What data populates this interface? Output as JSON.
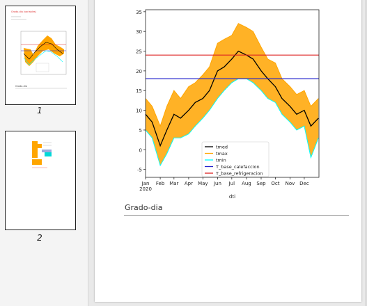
{
  "sidebar": {
    "pages": [
      {
        "number": "1",
        "title_text": "Grado-dia (variables)",
        "footer_text": "Grado-dia"
      },
      {
        "number": "2"
      }
    ]
  },
  "document": {
    "section_heading": "Grado-dia"
  },
  "colors": {
    "tmed": "#000000",
    "tmax": "#ffa500",
    "tmin": "#00ffff",
    "t_base_calefaccion": "#2222cc",
    "t_base_refrigeracion": "#dd2222",
    "fill_between": "#ffa500"
  },
  "chart_data": {
    "type": "line",
    "xlabel": "dti",
    "ylabel": "",
    "ylim": [
      -7,
      35.5
    ],
    "yticks": [
      -5,
      0,
      5,
      10,
      15,
      20,
      25,
      30,
      35
    ],
    "xticks": [
      {
        "label": "Jan",
        "sub": "2020",
        "day": 0
      },
      {
        "label": "Feb",
        "sub": "",
        "day": 31
      },
      {
        "label": "Mar",
        "sub": "",
        "day": 60
      },
      {
        "label": "Apr",
        "sub": "",
        "day": 91
      },
      {
        "label": "May",
        "sub": "",
        "day": 121
      },
      {
        "label": "Jun",
        "sub": "",
        "day": 152
      },
      {
        "label": "Jul",
        "sub": "",
        "day": 182
      },
      {
        "label": "Aug",
        "sub": "",
        "day": 213
      },
      {
        "label": "Sep",
        "sub": "",
        "day": 244
      },
      {
        "label": "Oct",
        "sub": "",
        "day": 274
      },
      {
        "label": "Nov",
        "sub": "",
        "day": 305
      },
      {
        "label": "Dec",
        "sub": "",
        "day": 335
      }
    ],
    "xlim_days": [
      0,
      366
    ],
    "hlines": [
      {
        "name": "T_base_calefaccion",
        "y": 18,
        "color": "#2222cc"
      },
      {
        "name": "T_base_refrigeracion",
        "y": 24,
        "color": "#dd2222"
      }
    ],
    "series": [
      {
        "name": "tmed",
        "color": "#000000",
        "x": [
          "2020-01-01",
          "2020-01-15",
          "2020-02-01",
          "2020-02-15",
          "2020-03-01",
          "2020-03-15",
          "2020-04-01",
          "2020-04-15",
          "2020-05-01",
          "2020-05-15",
          "2020-06-01",
          "2020-06-15",
          "2020-07-01",
          "2020-07-15",
          "2020-08-01",
          "2020-08-15",
          "2020-09-01",
          "2020-09-15",
          "2020-10-01",
          "2020-10-15",
          "2020-11-01",
          "2020-11-15",
          "2020-12-01",
          "2020-12-15",
          "2020-12-31"
        ],
        "values": [
          9,
          7,
          1,
          5,
          9,
          8,
          10,
          12,
          13,
          15,
          20,
          21,
          23,
          25,
          24,
          23,
          20,
          18,
          16,
          13,
          11,
          9,
          10,
          6,
          8
        ]
      },
      {
        "name": "tmax",
        "color": "#ffa500",
        "x": [
          "2020-01-01",
          "2020-01-15",
          "2020-02-01",
          "2020-02-15",
          "2020-03-01",
          "2020-03-15",
          "2020-04-01",
          "2020-04-15",
          "2020-05-01",
          "2020-05-15",
          "2020-06-01",
          "2020-06-15",
          "2020-07-01",
          "2020-07-15",
          "2020-08-01",
          "2020-08-15",
          "2020-09-01",
          "2020-09-15",
          "2020-10-01",
          "2020-10-15",
          "2020-11-01",
          "2020-11-15",
          "2020-12-01",
          "2020-12-15",
          "2020-12-31"
        ],
        "values": [
          13,
          11,
          6,
          11,
          15,
          13,
          16,
          17,
          19,
          21,
          27,
          28,
          29,
          32,
          31,
          30,
          26,
          23,
          22,
          18,
          16,
          14,
          15,
          11,
          13
        ]
      },
      {
        "name": "tmin",
        "color": "#00ffff",
        "x": [
          "2020-01-01",
          "2020-01-15",
          "2020-02-01",
          "2020-02-15",
          "2020-03-01",
          "2020-03-15",
          "2020-04-01",
          "2020-04-15",
          "2020-05-01",
          "2020-05-15",
          "2020-06-01",
          "2020-06-15",
          "2020-07-01",
          "2020-07-15",
          "2020-08-01",
          "2020-08-15",
          "2020-09-01",
          "2020-09-15",
          "2020-10-01",
          "2020-10-15",
          "2020-11-01",
          "2020-11-15",
          "2020-12-01",
          "2020-12-15",
          "2020-12-31"
        ],
        "values": [
          5,
          3,
          -4,
          -1,
          3,
          3,
          4,
          6,
          8,
          10,
          13,
          15,
          17,
          18,
          18,
          17,
          15,
          13,
          12,
          9,
          7,
          5,
          6,
          -2,
          3
        ]
      }
    ],
    "fill_between": {
      "series": [
        "tmin",
        "tmax"
      ],
      "color": "#ffa500",
      "where": "below T_base_calefaccion / above T_base_refrigeracion"
    },
    "legend": {
      "placement": "lower-center",
      "entries": [
        {
          "name": "tmed",
          "color": "#000000"
        },
        {
          "name": "tmax",
          "color": "#ffa500"
        },
        {
          "name": "tmin",
          "color": "#00ffff"
        },
        {
          "name": "T_base_calefaccion",
          "color": "#2222cc"
        },
        {
          "name": "T_base_refrigeracion",
          "color": "#dd2222"
        }
      ]
    }
  }
}
